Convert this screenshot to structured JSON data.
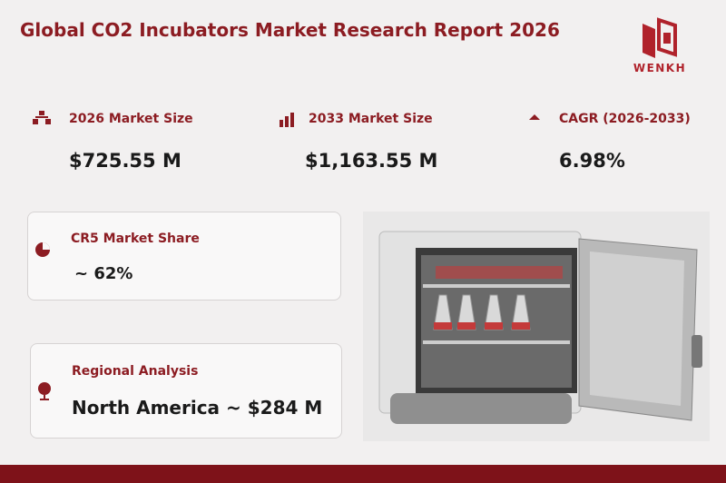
{
  "header": {
    "title": "Global CO2 Incubators Market Research Report 2026"
  },
  "logo": {
    "text": "WENKH"
  },
  "stats": [
    {
      "label": "2026 Market Size",
      "value": "$725.55 M"
    },
    {
      "label": "2033 Market Size",
      "value": "$1,163.55 M"
    },
    {
      "label": "CAGR (2026-2033)",
      "value": "6.98%"
    }
  ],
  "cards": [
    {
      "label": "CR5 Market Share",
      "value": "~ 62%"
    },
    {
      "label": "Regional Analysis",
      "value": "North America ~ $284 M"
    }
  ]
}
